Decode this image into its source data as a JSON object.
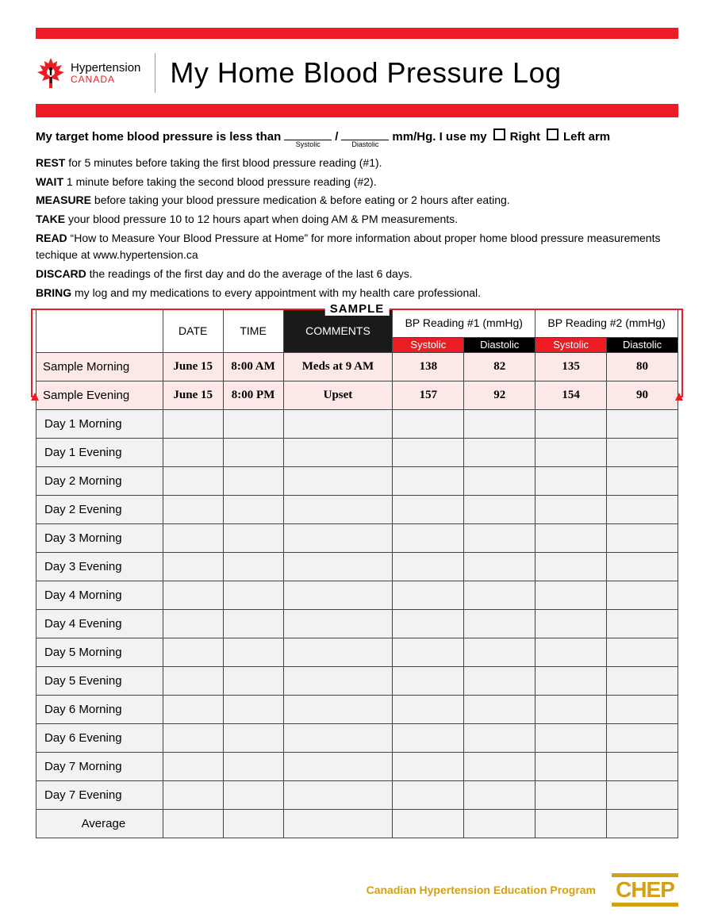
{
  "colors": {
    "accent_red": "#ed1c24",
    "chep_gold": "#d4a017",
    "sample_bg": "#fde8e8",
    "row_bg": "#f2f2f2"
  },
  "logo": {
    "line1": "Hypertension",
    "line2": "CANADA"
  },
  "title": "My Home Blood Pressure Log",
  "target_line": {
    "prefix": "My target home blood pressure is less than",
    "systolic_label": "Systolic",
    "diastolic_label": "Diastolic",
    "unit_suffix": "mm/Hg. I use my",
    "right_label": "Right",
    "left_label": "Left arm"
  },
  "instructions": [
    {
      "b": "REST",
      "t": " for 5 minutes before taking the first blood pressure reading (#1)."
    },
    {
      "b": "WAIT",
      "t": " 1 minute before taking the second blood pressure reading (#2)."
    },
    {
      "b": "MEASURE",
      "t": " before taking your blood pressure medication & before eating or 2 hours after eating."
    },
    {
      "b": "TAKE",
      "t": " your blood pressure 10 to 12 hours apart when doing AM & PM measurements."
    },
    {
      "b": "READ",
      "t": " “How to Measure Your Blood Pressure at Home” for more information about proper home blood pressure measurements techique at www.hypertension.ca"
    },
    {
      "b": "DISCARD",
      "t": " the readings of the first day and do the average of the last 6 days."
    },
    {
      "b": "BRING",
      "t": " my log and my medications to every appointment with my health care professional."
    }
  ],
  "sample_label": "SAMPLE",
  "table": {
    "headers": {
      "date": "DATE",
      "time": "TIME",
      "comments": "COMMENTS",
      "bp1": "BP Reading #1 (mmHg)",
      "bp2": "BP Reading #2 (mmHg)",
      "systolic": "Systolic",
      "diastolic": "Diastolic"
    },
    "sample_rows": [
      {
        "label": "Sample Morning",
        "date": "June 15",
        "time": "8:00 AM",
        "comments": "Meds at 9 AM",
        "s1": "138",
        "d1": "82",
        "s2": "135",
        "d2": "80"
      },
      {
        "label": "Sample Evening",
        "date": "June 15",
        "time": "8:00 PM",
        "comments": "Upset",
        "s1": "157",
        "d1": "92",
        "s2": "154",
        "d2": "90"
      }
    ],
    "day_rows": [
      "Day 1 Morning",
      "Day 1 Evening",
      "Day 2 Morning",
      "Day 2 Evening",
      "Day 3 Morning",
      "Day 3 Evening",
      "Day 4 Morning",
      "Day 4 Evening",
      "Day 5 Morning",
      "Day 5 Evening",
      "Day 6 Morning",
      "Day 6 Evening",
      "Day 7 Morning",
      "Day 7 Evening"
    ],
    "average_label": "Average"
  },
  "footer": {
    "text": "Canadian Hypertension Education Program",
    "chep": "CHEP"
  }
}
